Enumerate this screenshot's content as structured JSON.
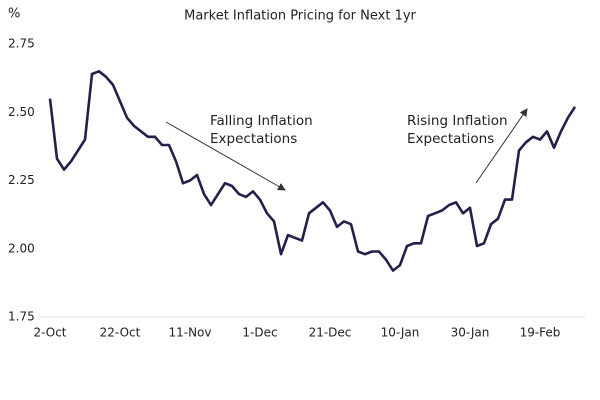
{
  "chart_data": {
    "type": "line",
    "title": "Market Inflation Pricing for Next 1yr",
    "y_label": "%",
    "categories": [
      "2-Oct",
      null,
      null,
      null,
      null,
      null,
      null,
      null,
      null,
      null,
      "22-Oct",
      null,
      null,
      null,
      null,
      null,
      null,
      null,
      null,
      null,
      "11-Nov",
      null,
      null,
      null,
      null,
      null,
      null,
      null,
      null,
      null,
      "1-Dec",
      null,
      null,
      null,
      null,
      null,
      null,
      null,
      null,
      null,
      "21-Dec",
      null,
      null,
      null,
      null,
      null,
      null,
      null,
      null,
      null,
      "10-Jan",
      null,
      null,
      null,
      null,
      null,
      null,
      null,
      null,
      null,
      "30-Jan",
      null,
      null,
      null,
      null,
      null,
      null,
      null,
      null,
      null,
      "19-Feb",
      null,
      null,
      null,
      null,
      null
    ],
    "values": [
      2.55,
      2.33,
      2.29,
      2.32,
      2.36,
      2.4,
      2.64,
      2.65,
      2.63,
      2.6,
      2.54,
      2.48,
      2.45,
      2.43,
      2.41,
      2.41,
      2.38,
      2.38,
      2.32,
      2.24,
      2.25,
      2.27,
      2.2,
      2.16,
      2.2,
      2.24,
      2.23,
      2.2,
      2.19,
      2.21,
      2.18,
      2.13,
      2.1,
      1.98,
      2.05,
      2.04,
      2.03,
      2.13,
      2.15,
      2.17,
      2.14,
      2.08,
      2.1,
      2.09,
      1.99,
      1.98,
      1.99,
      1.99,
      1.96,
      1.92,
      1.94,
      2.01,
      2.02,
      2.02,
      2.12,
      2.13,
      2.14,
      2.16,
      2.17,
      2.13,
      2.15,
      2.01,
      2.02,
      2.09,
      2.11,
      2.18,
      2.18,
      2.36,
      2.39,
      2.41,
      2.4,
      2.43,
      2.37,
      2.43,
      2.48,
      2.52
    ],
    "color": "#23204a",
    "ylim": [
      1.75,
      2.75
    ],
    "yticks": [
      1.75,
      {
        "value": 2,
        "label": "2.00"
      },
      2.25,
      {
        "value": 2.5,
        "label": "2.50"
      },
      2.75
    ],
    "grid": false,
    "annotations": [
      {
        "lines": [
          "Falling Inflation",
          "Expectations"
        ]
      },
      {
        "lines": [
          "Rising Inflation",
          "Expectations"
        ]
      }
    ]
  }
}
